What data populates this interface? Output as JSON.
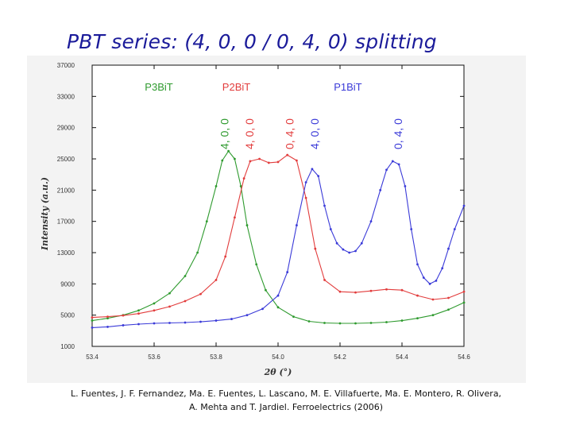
{
  "slide": {
    "title": "PBT series: (4, 0, 0 / 0, 4, 0) splitting",
    "citation_line1": "L. Fuentes, J. F. Fernandez, Ma. E. Fuentes, L. Lascano, M. E. Villafuerte, Ma. E. Montero, R. Olivera,",
    "citation_line2": "A. Mehta and T. Jardiel.  Ferroelectrics (2006)"
  },
  "colors": {
    "P3BiT": "#2e9a2e",
    "P2BiT": "#e23c3c",
    "P1BiT": "#3a3ad8",
    "axes": "#111111",
    "title": "#1b1b9a"
  },
  "chart_data": {
    "type": "line",
    "title": "",
    "xlabel": "2θ (°)",
    "ylabel": "Intensity (a.u.)",
    "xlim": [
      53.4,
      54.6
    ],
    "ylim": [
      1000,
      37000
    ],
    "xticks": [
      "53.4",
      "53.6",
      "53.8",
      "54.0",
      "54.2",
      "54.4",
      "54.6"
    ],
    "yticks": [
      "1000",
      "5000",
      "9000",
      "13000",
      "17000",
      "21000",
      "25000",
      "29000",
      "33000",
      "37000"
    ],
    "grid": false,
    "legend": "top (color-coded text)",
    "series": [
      {
        "name": "P3BiT",
        "color": "#2e9a2e",
        "x": [
          53.4,
          53.45,
          53.5,
          53.55,
          53.6,
          53.65,
          53.7,
          53.74,
          53.77,
          53.8,
          53.82,
          53.84,
          53.86,
          53.88,
          53.9,
          53.93,
          53.96,
          54.0,
          54.05,
          54.1,
          54.15,
          54.2,
          54.25,
          54.3,
          54.35,
          54.4,
          54.45,
          54.5,
          54.55,
          54.6
        ],
        "y": [
          4300,
          4600,
          5000,
          5600,
          6500,
          7800,
          10000,
          13000,
          17000,
          21500,
          24800,
          26000,
          25000,
          21500,
          16500,
          11500,
          8200,
          6000,
          4800,
          4200,
          4000,
          3950,
          3950,
          4000,
          4100,
          4300,
          4600,
          5000,
          5700,
          6600
        ]
      },
      {
        "name": "P2BiT",
        "color": "#e23c3c",
        "x": [
          53.4,
          53.45,
          53.5,
          53.55,
          53.6,
          53.65,
          53.7,
          53.75,
          53.8,
          53.83,
          53.86,
          53.89,
          53.91,
          53.94,
          53.97,
          54.0,
          54.03,
          54.06,
          54.09,
          54.12,
          54.15,
          54.2,
          54.25,
          54.3,
          54.35,
          54.4,
          54.45,
          54.5,
          54.55,
          54.6
        ],
        "y": [
          4700,
          4800,
          4950,
          5200,
          5600,
          6100,
          6800,
          7700,
          9500,
          12500,
          17500,
          22500,
          24700,
          25000,
          24500,
          24600,
          25500,
          24800,
          20000,
          13500,
          9500,
          8000,
          7900,
          8100,
          8300,
          8200,
          7500,
          7000,
          7200,
          8000
        ]
      },
      {
        "name": "P1BiT",
        "color": "#3a3ad8",
        "x": [
          53.4,
          53.45,
          53.5,
          53.55,
          53.6,
          53.65,
          53.7,
          53.75,
          53.8,
          53.85,
          53.9,
          53.95,
          54.0,
          54.03,
          54.06,
          54.09,
          54.11,
          54.13,
          54.15,
          54.17,
          54.19,
          54.21,
          54.23,
          54.25,
          54.27,
          54.3,
          54.33,
          54.35,
          54.37,
          54.39,
          54.41,
          54.43,
          54.45,
          54.47,
          54.49,
          54.51,
          54.53,
          54.55,
          54.57,
          54.6
        ],
        "y": [
          3400,
          3500,
          3700,
          3850,
          3950,
          4000,
          4050,
          4150,
          4300,
          4500,
          5000,
          5800,
          7500,
          10500,
          16500,
          22000,
          23700,
          22800,
          19000,
          16000,
          14200,
          13400,
          13000,
          13200,
          14200,
          17000,
          21000,
          23600,
          24700,
          24300,
          21500,
          16000,
          11500,
          9800,
          9000,
          9400,
          11000,
          13500,
          16000,
          19000
        ]
      }
    ],
    "annotations": [
      {
        "text": "4, 0, 0",
        "color": "#2e9a2e",
        "x": 53.83
      },
      {
        "text": "4, 0, 0",
        "color": "#e23c3c",
        "x": 53.91
      },
      {
        "text": "0, 4, 0",
        "color": "#e23c3c",
        "x": 54.04
      },
      {
        "text": "4, 0, 0",
        "color": "#3a3ad8",
        "x": 54.12
      },
      {
        "text": "0, 4, 0",
        "color": "#3a3ad8",
        "x": 54.39
      }
    ]
  }
}
